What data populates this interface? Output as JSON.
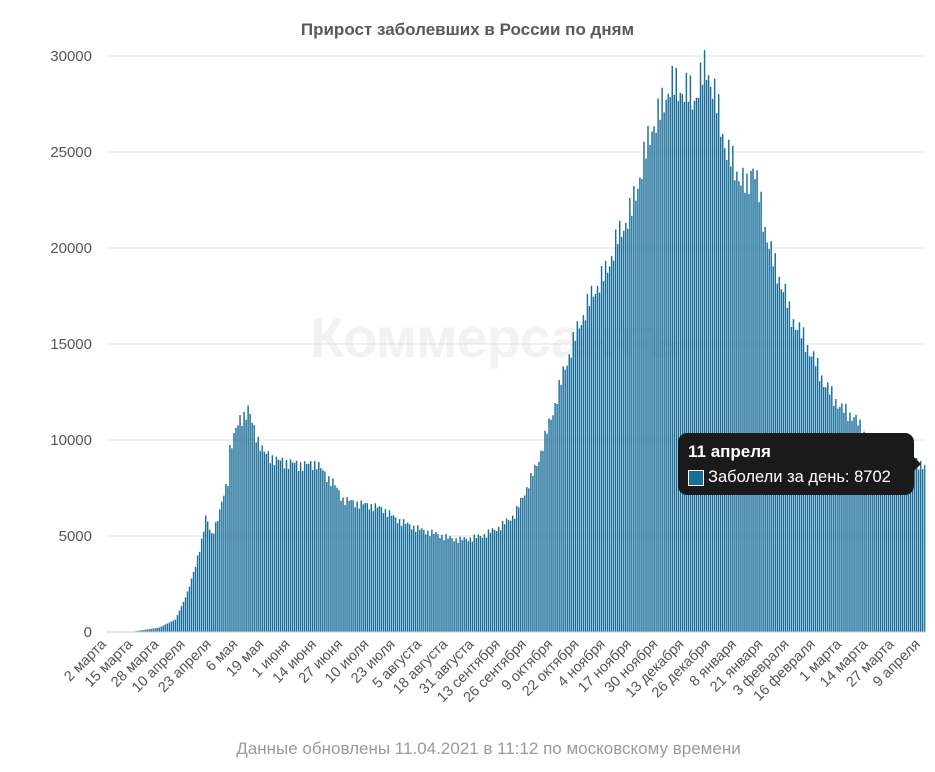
{
  "chart_data": {
    "type": "bar",
    "title": "Прирост заболевших в России по дням",
    "ylim": [
      0,
      30000
    ],
    "y_ticks": [
      "0",
      "5000",
      "10000",
      "15000",
      "20000",
      "25000",
      "30000"
    ],
    "y_tick_values": [
      0,
      5000,
      10000,
      15000,
      20000,
      25000,
      30000
    ],
    "x_tick_labels": [
      "2 марта",
      "15 марта",
      "28 марта",
      "10 апреля",
      "23 апреля",
      "6 мая",
      "19 мая",
      "1 июня",
      "14 июня",
      "27 июня",
      "10 июля",
      "23 июля",
      "5 августа",
      "18 августа",
      "31 августа",
      "13 сентября",
      "26 сентября",
      "9 октября",
      "22 октября",
      "4 ноября",
      "17 ноября",
      "30 ноября",
      "13 декабря",
      "26 декабря",
      "8 января",
      "21 января",
      "3 февраля",
      "16 февраля",
      "1 марта",
      "14 марта",
      "27 марта",
      "9 апреля"
    ],
    "date_range": [
      "2020-03-02",
      "2021-04-11"
    ],
    "bar_color": "#1a6e9a",
    "grid": true,
    "series": [
      {
        "name": "Заболели за день",
        "key_points": [
          [
            "2020-03-02",
            3
          ],
          [
            "2020-03-15",
            20
          ],
          [
            "2020-03-28",
            230
          ],
          [
            "2020-04-05",
            650
          ],
          [
            "2020-04-10",
            1800
          ],
          [
            "2020-04-15",
            3400
          ],
          [
            "2020-04-18",
            4800
          ],
          [
            "2020-04-20",
            6000
          ],
          [
            "2020-04-23",
            5000
          ],
          [
            "2020-04-27",
            6300
          ],
          [
            "2020-05-01",
            7900
          ],
          [
            "2020-05-02",
            9600
          ],
          [
            "2020-05-05",
            10500
          ],
          [
            "2020-05-07",
            11000
          ],
          [
            "2020-05-11",
            11600
          ],
          [
            "2020-05-14",
            10500
          ],
          [
            "2020-05-19",
            9300
          ],
          [
            "2020-05-26",
            8900
          ],
          [
            "2020-06-01",
            8800
          ],
          [
            "2020-06-05",
            8700
          ],
          [
            "2020-06-10",
            8700
          ],
          [
            "2020-06-14",
            8800
          ],
          [
            "2020-06-18",
            8200
          ],
          [
            "2020-06-22",
            7800
          ],
          [
            "2020-06-27",
            6900
          ],
          [
            "2020-07-04",
            6700
          ],
          [
            "2020-07-10",
            6600
          ],
          [
            "2020-07-17",
            6400
          ],
          [
            "2020-07-23",
            5900
          ],
          [
            "2020-07-29",
            5600
          ],
          [
            "2020-08-05",
            5300
          ],
          [
            "2020-08-12",
            5100
          ],
          [
            "2020-08-18",
            4900
          ],
          [
            "2020-08-24",
            4800
          ],
          [
            "2020-08-31",
            4900
          ],
          [
            "2020-09-06",
            5100
          ],
          [
            "2020-09-13",
            5500
          ],
          [
            "2020-09-20",
            6100
          ],
          [
            "2020-09-26",
            7500
          ],
          [
            "2020-10-01",
            8700
          ],
          [
            "2020-10-09",
            11500
          ],
          [
            "2020-10-15",
            13800
          ],
          [
            "2020-10-22",
            16000
          ],
          [
            "2020-10-29",
            17700
          ],
          [
            "2020-11-04",
            18700
          ],
          [
            "2020-11-10",
            20500
          ],
          [
            "2020-11-17",
            22000
          ],
          [
            "2020-11-22",
            24200
          ],
          [
            "2020-11-27",
            26300
          ],
          [
            "2020-11-30",
            26800
          ],
          [
            "2020-12-06",
            28500
          ],
          [
            "2020-12-10",
            28300
          ],
          [
            "2020-12-13",
            28200
          ],
          [
            "2020-12-18",
            27800
          ],
          [
            "2020-12-24",
            29500
          ],
          [
            "2020-12-26",
            28700
          ],
          [
            "2020-12-30",
            27000
          ],
          [
            "2021-01-03",
            25000
          ],
          [
            "2021-01-08",
            24000
          ],
          [
            "2021-01-13",
            23000
          ],
          [
            "2021-01-16",
            24500
          ],
          [
            "2021-01-21",
            21500
          ],
          [
            "2021-01-26",
            19300
          ],
          [
            "2021-02-01",
            17600
          ],
          [
            "2021-02-03",
            16600
          ],
          [
            "2021-02-10",
            15300
          ],
          [
            "2021-02-16",
            14000
          ],
          [
            "2021-02-21",
            12800
          ],
          [
            "2021-03-01",
            11600
          ],
          [
            "2021-03-07",
            11200
          ],
          [
            "2021-03-14",
            10000
          ],
          [
            "2021-03-20",
            9500
          ],
          [
            "2021-03-27",
            9000
          ],
          [
            "2021-04-02",
            8700
          ],
          [
            "2021-04-09",
            8800
          ],
          [
            "2021-04-11",
            8702
          ]
        ]
      }
    ]
  },
  "tooltip": {
    "date": "11 апреля",
    "label": "Заболели за день: 8702"
  },
  "watermark": "Коммерсантъ",
  "footer": "Данные обновлены 11.04.2021 в 11:12 по московскому времени"
}
